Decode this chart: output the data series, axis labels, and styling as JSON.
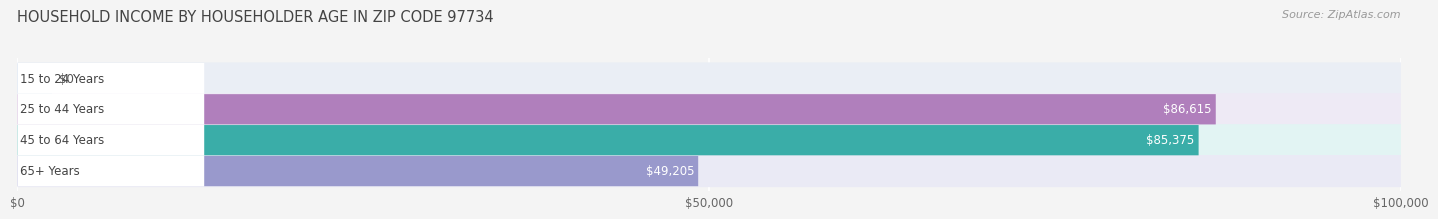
{
  "title": "HOUSEHOLD INCOME BY HOUSEHOLDER AGE IN ZIP CODE 97734",
  "source": "Source: ZipAtlas.com",
  "categories": [
    "15 to 24 Years",
    "25 to 44 Years",
    "45 to 64 Years",
    "65+ Years"
  ],
  "values": [
    0,
    86615,
    85375,
    49205
  ],
  "bar_colors": [
    "#aabfe0",
    "#b07fbc",
    "#3aada8",
    "#9999cc"
  ],
  "bg_colors": [
    "#eaeef5",
    "#eeeaf5",
    "#e2f4f3",
    "#eaeaf5"
  ],
  "value_labels": [
    "$0",
    "$86,615",
    "$85,375",
    "$49,205"
  ],
  "xlim": [
    0,
    100000
  ],
  "xticks": [
    0,
    50000,
    100000
  ],
  "xticklabels": [
    "$0",
    "$50,000",
    "$100,000"
  ],
  "background_color": "#f4f4f4",
  "bar_height": 0.52
}
